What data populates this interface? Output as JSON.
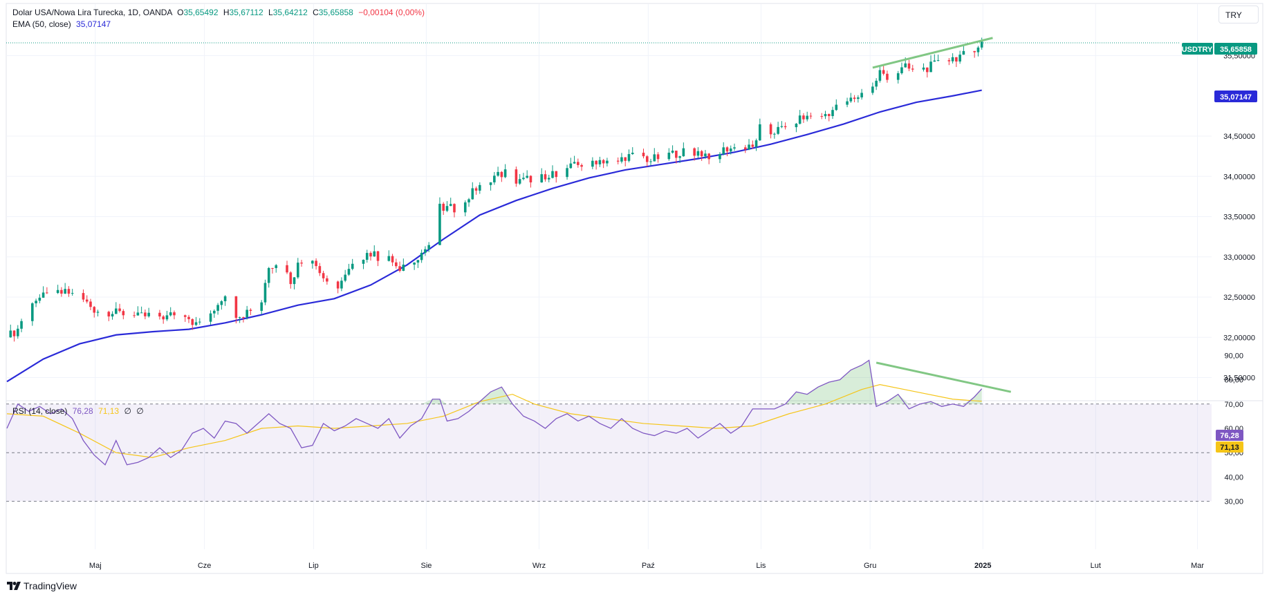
{
  "header": {
    "title": "Dolar USA/Nowa Lira Turecka, 1D, OANDA",
    "o_label": "O",
    "o_value": "35,65492",
    "h_label": "H",
    "h_value": "35,67112",
    "l_label": "L",
    "l_value": "35,64212",
    "c_label": "C",
    "c_value": "35,65858",
    "change": "−0,00104 (0,00%)",
    "ema_label": "EMA (50, close)",
    "ema_value": "35,07147",
    "rsi_label": "RSI (14, close)",
    "rsi_value": "76,28",
    "rsi_ma_value": "71,13",
    "rsi_extra1": "∅",
    "rsi_extra2": "∅"
  },
  "currency_button": "TRY",
  "brand": "TradingView",
  "colors": {
    "up": "#089981",
    "down": "#f23645",
    "ema": "#2a2ad8",
    "rsi": "#7e57c2",
    "rsi_ma": "#f5c518",
    "trendline": "#81c784"
  },
  "chart_data": [
    {
      "type": "candlestick",
      "symbol_tag": "USDTRY",
      "last_price": 35.65858,
      "last_price_label": "35,65858",
      "ema_label": "35,07147",
      "y_ticks": [
        "31,50000",
        "32,00000",
        "32,50000",
        "33,00000",
        "33,50000",
        "34,00000",
        "34,50000",
        "35,50000"
      ],
      "x_ticks": [
        "Maj",
        "Cze",
        "Lip",
        "Sie",
        "Wrz",
        "Paź",
        "Lis",
        "Gru",
        "2025",
        "Lut",
        "Mar"
      ],
      "price_path": [
        [
          0,
          32.0
        ],
        [
          3,
          32.1
        ],
        [
          6,
          32.45
        ],
        [
          10,
          32.5
        ],
        [
          14,
          32.55
        ],
        [
          17,
          32.55
        ],
        [
          20,
          32.5
        ],
        [
          24,
          32.35
        ],
        [
          28,
          32.3
        ],
        [
          32,
          32.3
        ],
        [
          36,
          32.25
        ],
        [
          40,
          32.28
        ],
        [
          44,
          32.25
        ],
        [
          48,
          32.35
        ],
        [
          52,
          32.15
        ],
        [
          56,
          32.3
        ],
        [
          60,
          32.55
        ],
        [
          62,
          32.3
        ],
        [
          65,
          32.3
        ],
        [
          70,
          32.45
        ],
        [
          72,
          32.9
        ],
        [
          75,
          32.95
        ],
        [
          78,
          32.7
        ],
        [
          80,
          32.9
        ],
        [
          84,
          33.0
        ],
        [
          86,
          32.8
        ],
        [
          88,
          32.7
        ],
        [
          90,
          32.6
        ],
        [
          93,
          32.75
        ],
        [
          96,
          32.95
        ],
        [
          99,
          33.05
        ],
        [
          102,
          33.0
        ],
        [
          106,
          32.95
        ],
        [
          108,
          32.8
        ],
        [
          111,
          32.95
        ],
        [
          114,
          33.05
        ],
        [
          117,
          33.2
        ],
        [
          119,
          33.6
        ],
        [
          121,
          33.6
        ],
        [
          124,
          33.6
        ],
        [
          128,
          33.8
        ],
        [
          131,
          33.95
        ],
        [
          134,
          34.0
        ],
        [
          137,
          34.05
        ],
        [
          139,
          33.9
        ],
        [
          142,
          33.95
        ],
        [
          146,
          34.0
        ],
        [
          148,
          33.95
        ],
        [
          151,
          34.05
        ],
        [
          154,
          34.1
        ],
        [
          158,
          34.15
        ],
        [
          162,
          34.2
        ],
        [
          165,
          34.2
        ],
        [
          167,
          34.15
        ],
        [
          170,
          34.25
        ],
        [
          174,
          34.25
        ],
        [
          177,
          34.2
        ],
        [
          180,
          34.25
        ],
        [
          185,
          34.3
        ],
        [
          190,
          34.3
        ],
        [
          194,
          34.25
        ],
        [
          198,
          34.35
        ],
        [
          202,
          34.35
        ],
        [
          205,
          34.35
        ],
        [
          207,
          34.6
        ],
        [
          210,
          34.55
        ],
        [
          214,
          34.6
        ],
        [
          217,
          34.7
        ],
        [
          221,
          34.75
        ],
        [
          224,
          34.75
        ],
        [
          228,
          34.85
        ],
        [
          232,
          34.95
        ],
        [
          236,
          35.05
        ],
        [
          238,
          35.1
        ],
        [
          240,
          35.3
        ],
        [
          242,
          35.2
        ],
        [
          245,
          35.3
        ],
        [
          247,
          35.35
        ],
        [
          250,
          35.3
        ],
        [
          253,
          35.35
        ],
        [
          256,
          35.4
        ],
        [
          259,
          35.45
        ],
        [
          262,
          35.5
        ],
        [
          264,
          35.5
        ],
        [
          266,
          35.6
        ],
        [
          268,
          35.66
        ]
      ],
      "ema_path": [
        [
          0,
          31.45
        ],
        [
          10,
          31.73
        ],
        [
          20,
          31.92
        ],
        [
          30,
          32.03
        ],
        [
          40,
          32.07
        ],
        [
          50,
          32.1
        ],
        [
          60,
          32.18
        ],
        [
          70,
          32.28
        ],
        [
          80,
          32.4
        ],
        [
          90,
          32.48
        ],
        [
          100,
          32.65
        ],
        [
          110,
          32.9
        ],
        [
          120,
          33.22
        ],
        [
          130,
          33.52
        ],
        [
          140,
          33.7
        ],
        [
          150,
          33.85
        ],
        [
          160,
          33.98
        ],
        [
          170,
          34.08
        ],
        [
          180,
          34.15
        ],
        [
          190,
          34.22
        ],
        [
          200,
          34.3
        ],
        [
          210,
          34.4
        ],
        [
          220,
          34.52
        ],
        [
          230,
          34.65
        ],
        [
          240,
          34.8
        ],
        [
          250,
          34.92
        ],
        [
          260,
          35.0
        ],
        [
          268,
          35.07
        ]
      ],
      "trendline": [
        [
          238,
          35.35
        ],
        [
          271,
          35.72
        ]
      ]
    },
    {
      "type": "line",
      "title": "RSI (14, close)",
      "y_ticks": [
        "30,00",
        "40,00",
        "50,00",
        "60,00",
        "70,00",
        "80,00",
        "90,00"
      ],
      "levels": [
        30,
        50,
        70
      ],
      "series": [
        {
          "name": "RSI",
          "points": [
            [
              0,
              60
            ],
            [
              3,
              70
            ],
            [
              6,
              67
            ],
            [
              9,
              69
            ],
            [
              12,
              66
            ],
            [
              15,
              68
            ],
            [
              18,
              64
            ],
            [
              21,
              55
            ],
            [
              24,
              49
            ],
            [
              27,
              45
            ],
            [
              30,
              55
            ],
            [
              33,
              45
            ],
            [
              36,
              46
            ],
            [
              39,
              48
            ],
            [
              42,
              52
            ],
            [
              45,
              48
            ],
            [
              48,
              51
            ],
            [
              51,
              58
            ],
            [
              54,
              60
            ],
            [
              57,
              56
            ],
            [
              60,
              63
            ],
            [
              63,
              62
            ],
            [
              66,
              58
            ],
            [
              69,
              62
            ],
            [
              72,
              66
            ],
            [
              75,
              62
            ],
            [
              78,
              60
            ],
            [
              81,
              52
            ],
            [
              84,
              53
            ],
            [
              87,
              62
            ],
            [
              90,
              59
            ],
            [
              93,
              61
            ],
            [
              96,
              64
            ],
            [
              99,
              62
            ],
            [
              102,
              60
            ],
            [
              105,
              64
            ],
            [
              108,
              56
            ],
            [
              111,
              61
            ],
            [
              114,
              64
            ],
            [
              117,
              72
            ],
            [
              119,
              72
            ],
            [
              121,
              63
            ],
            [
              124,
              64
            ],
            [
              127,
              67
            ],
            [
              130,
              71
            ],
            [
              133,
              75
            ],
            [
              136,
              77
            ],
            [
              139,
              70
            ],
            [
              142,
              65
            ],
            [
              145,
              63
            ],
            [
              148,
              60
            ],
            [
              151,
              64
            ],
            [
              154,
              66
            ],
            [
              157,
              63
            ],
            [
              160,
              65
            ],
            [
              163,
              62
            ],
            [
              166,
              60
            ],
            [
              169,
              64
            ],
            [
              172,
              60
            ],
            [
              175,
              58
            ],
            [
              178,
              57
            ],
            [
              181,
              59
            ],
            [
              184,
              58
            ],
            [
              187,
              60
            ],
            [
              190,
              56
            ],
            [
              193,
              59
            ],
            [
              196,
              62
            ],
            [
              199,
              58
            ],
            [
              202,
              61
            ],
            [
              205,
              68
            ],
            [
              208,
              68
            ],
            [
              211,
              68
            ],
            [
              214,
              70
            ],
            [
              217,
              75
            ],
            [
              220,
              74
            ],
            [
              223,
              77
            ],
            [
              226,
              79
            ],
            [
              229,
              80
            ],
            [
              232,
              84
            ],
            [
              235,
              86
            ],
            [
              237,
              88
            ],
            [
              239,
              69
            ],
            [
              242,
              71
            ],
            [
              245,
              74
            ],
            [
              248,
              68
            ],
            [
              251,
              70
            ],
            [
              254,
              71
            ],
            [
              257,
              69
            ],
            [
              260,
              70
            ],
            [
              263,
              69
            ],
            [
              266,
              73
            ],
            [
              268,
              76.28
            ]
          ]
        },
        {
          "name": "RSI MA",
          "points": [
            [
              0,
              66
            ],
            [
              10,
              65
            ],
            [
              20,
              58
            ],
            [
              30,
              50
            ],
            [
              40,
              48
            ],
            [
              50,
              52
            ],
            [
              60,
              55
            ],
            [
              70,
              60
            ],
            [
              80,
              61
            ],
            [
              90,
              60
            ],
            [
              100,
              61
            ],
            [
              110,
              62
            ],
            [
              120,
              65
            ],
            [
              130,
              71
            ],
            [
              139,
              74
            ],
            [
              145,
              70
            ],
            [
              155,
              66
            ],
            [
              165,
              64
            ],
            [
              175,
              62
            ],
            [
              185,
              61
            ],
            [
              195,
              60
            ],
            [
              205,
              61
            ],
            [
              215,
              66
            ],
            [
              225,
              70
            ],
            [
              235,
              76
            ],
            [
              240,
              78
            ],
            [
              250,
              75
            ],
            [
              260,
              72
            ],
            [
              268,
              71.13
            ]
          ]
        }
      ],
      "divergence_line": [
        [
          239,
          87
        ],
        [
          276,
          75
        ]
      ],
      "value_labels": {
        "rsi": "76,28",
        "rsi_ma": "71,13"
      }
    }
  ]
}
